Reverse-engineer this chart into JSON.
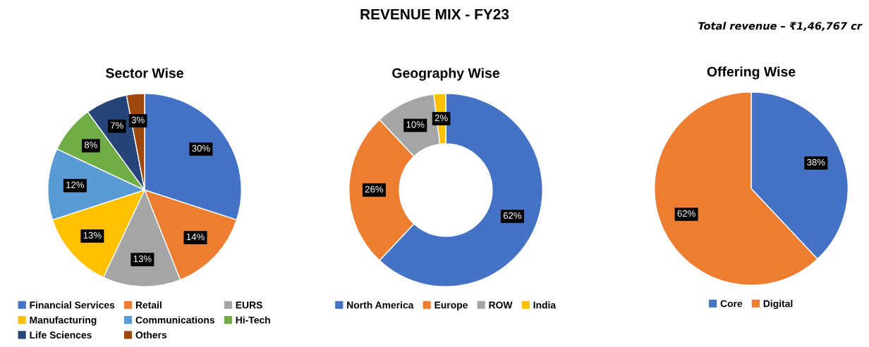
{
  "chart_data": [
    {
      "type": "other",
      "title": "REVENUE MIX - FY23",
      "annotations": [
        "Total revenue – ₹1,46,767 cr"
      ]
    },
    {
      "type": "pie",
      "title": "Sector Wise",
      "categories": [
        "Financial Services",
        "Retail",
        "EURS",
        "Manufacturing",
        "Communications",
        "Hi-Tech",
        "Life Sciences",
        "Others"
      ],
      "values": [
        30,
        14,
        13,
        13,
        12,
        8,
        7,
        3
      ],
      "value_labels": [
        "30%",
        "14%",
        "13%",
        "13%",
        "12%",
        "8%",
        "7%",
        "3%"
      ],
      "colors": [
        "#4472c4",
        "#ed7d31",
        "#a5a5a5",
        "#ffc000",
        "#5b9bd5",
        "#70ad47",
        "#264478",
        "#9e480e"
      ],
      "legend": "bottom"
    },
    {
      "type": "donut",
      "title": "Geography Wise",
      "categories": [
        "North America",
        "Europe",
        "ROW",
        "India"
      ],
      "values": [
        62,
        26,
        10,
        2
      ],
      "value_labels": [
        "62%",
        "26%",
        "10%",
        "2%"
      ],
      "colors": [
        "#4472c4",
        "#ed7d31",
        "#a5a5a5",
        "#ffc000"
      ],
      "legend": "bottom"
    },
    {
      "type": "pie",
      "title": "Offering Wise",
      "categories": [
        "Core",
        "Digital"
      ],
      "values": [
        38,
        62
      ],
      "value_labels": [
        "38%",
        "62%"
      ],
      "colors": [
        "#4472c4",
        "#ed7d31"
      ],
      "legend": "bottom"
    }
  ]
}
